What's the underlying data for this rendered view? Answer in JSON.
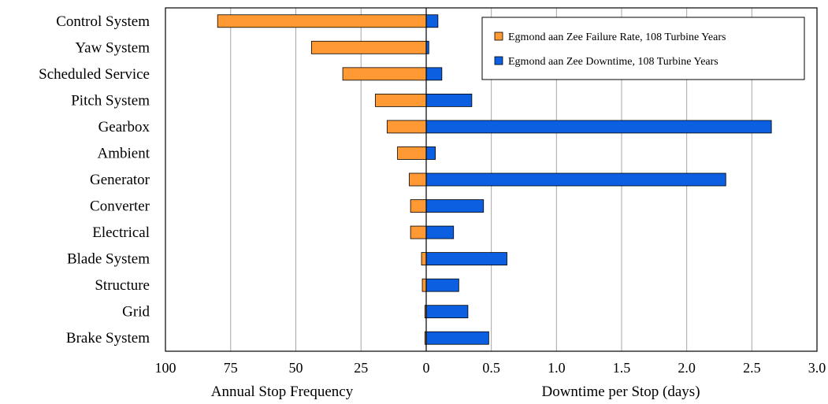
{
  "chart_data": {
    "type": "bar",
    "orientation": "horizontal",
    "categories": [
      "Control System",
      "Yaw System",
      "Scheduled Service",
      "Pitch System",
      "Gearbox",
      "Ambient",
      "Generator",
      "Converter",
      "Electrical",
      "Blade System",
      "Structure",
      "Grid",
      "Brake System"
    ],
    "series": [
      {
        "name": "Egmond aan Zee Failure Rate, 108 Turbine Years",
        "axis": "left",
        "color": "#ff9933",
        "values": [
          80,
          44,
          32,
          19.5,
          15,
          11,
          6.5,
          6,
          6,
          1.8,
          1.5,
          0.5,
          0.5
        ]
      },
      {
        "name": "Egmond aan Zee Downtime, 108 Turbine Years",
        "axis": "right",
        "color": "#0b5fe0",
        "values": [
          0.09,
          0.02,
          0.12,
          0.35,
          2.65,
          0.07,
          2.3,
          0.44,
          0.21,
          0.62,
          0.25,
          0.32,
          0.48
        ]
      }
    ],
    "left_axis": {
      "label": "Annual Stop Frequency",
      "ticks": [
        "100",
        "75",
        "50",
        "25",
        "0"
      ],
      "range": [
        100,
        0
      ]
    },
    "right_axis": {
      "label": "Downtime per Stop (days)",
      "ticks": [
        "0.5",
        "1.0",
        "1.5",
        "2.0",
        "2.5",
        "3.0"
      ],
      "range": [
        0,
        3.0
      ]
    },
    "grid": true,
    "legend_position": "top-right"
  }
}
